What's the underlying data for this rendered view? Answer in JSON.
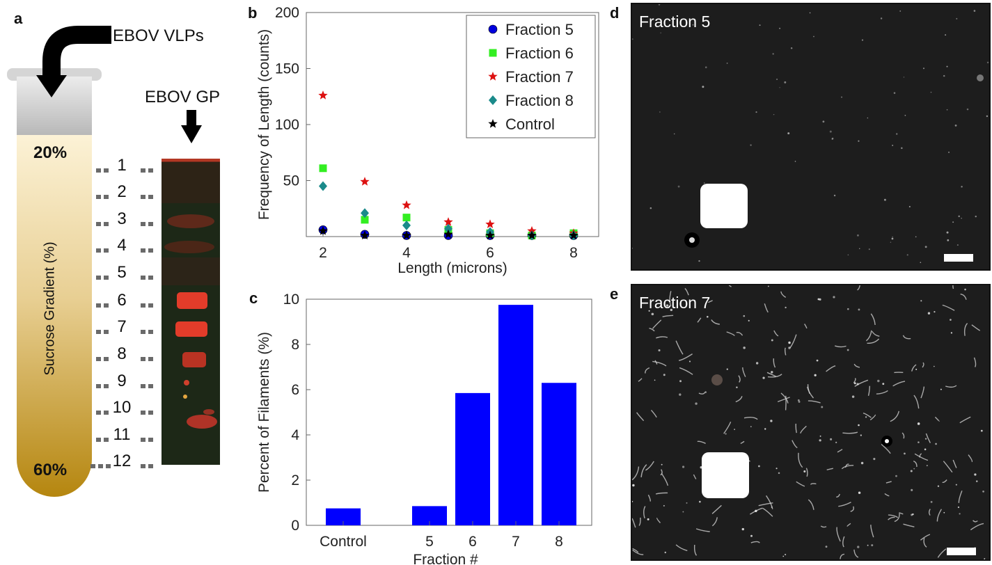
{
  "panels": {
    "a": {
      "letter": "a",
      "vlp_label": "EBOV VLPs",
      "gp_label": "EBOV GP",
      "top_pct": "20%",
      "bottom_pct": "60%",
      "gradient_label": "Sucrose Gradient (%)",
      "fractions": [
        "1",
        "2",
        "3",
        "4",
        "5",
        "6",
        "7",
        "8",
        "9",
        "10",
        "11",
        "12"
      ],
      "colors": {
        "tube_top": "#fbf0d2",
        "tube_bottom": "#b8860b",
        "cap": "#c9c9c9",
        "blot_bg": "#1f2a18",
        "band": "#e0392a"
      }
    },
    "b": {
      "letter": "b"
    },
    "c": {
      "letter": "c"
    },
    "d": {
      "letter": "d",
      "label": "Fraction 5"
    },
    "e": {
      "letter": "e",
      "label": "Fraction 7"
    }
  },
  "chart_data": [
    {
      "type": "scatter",
      "xlabel": "Length (microns)",
      "ylabel": "Frequency of Length (counts)",
      "xlim": [
        1.6,
        8.6
      ],
      "ylim": [
        0,
        200
      ],
      "xticks": [
        2,
        4,
        6,
        8
      ],
      "yticks": [
        50,
        100,
        150,
        200
      ],
      "legend_position": "top-right",
      "x": [
        2,
        3,
        4,
        5,
        6,
        7,
        8
      ],
      "series": [
        {
          "name": "Fraction 5",
          "marker": "circle",
          "color": "#0000dd",
          "values": [
            6,
            2,
            1,
            1,
            1,
            1,
            1
          ]
        },
        {
          "name": "Fraction 6",
          "marker": "square",
          "color": "#33ee22",
          "values": [
            61,
            15,
            17,
            6,
            3,
            1,
            3
          ]
        },
        {
          "name": "Fraction 7",
          "marker": "star",
          "color": "#dd1111",
          "values": [
            126,
            49,
            28,
            13,
            11,
            5,
            3
          ]
        },
        {
          "name": "Fraction 8",
          "marker": "diamond",
          "color": "#1a8a8a",
          "values": [
            45,
            21,
            10,
            7,
            4,
            1,
            1
          ]
        },
        {
          "name": "Control",
          "marker": "star",
          "color": "#000000",
          "values": [
            5,
            1,
            1,
            2,
            1,
            1,
            1
          ]
        }
      ]
    },
    {
      "type": "bar",
      "xlabel": "Fraction #",
      "ylabel": "Percent  of  Filaments (%)",
      "ylim": [
        0,
        10
      ],
      "yticks": [
        0,
        2,
        4,
        6,
        8,
        10
      ],
      "categories": [
        "Control",
        "5",
        "6",
        "7",
        "8"
      ],
      "values": [
        0.75,
        0.85,
        5.85,
        9.75,
        6.3
      ],
      "color": "#0000ff"
    }
  ]
}
